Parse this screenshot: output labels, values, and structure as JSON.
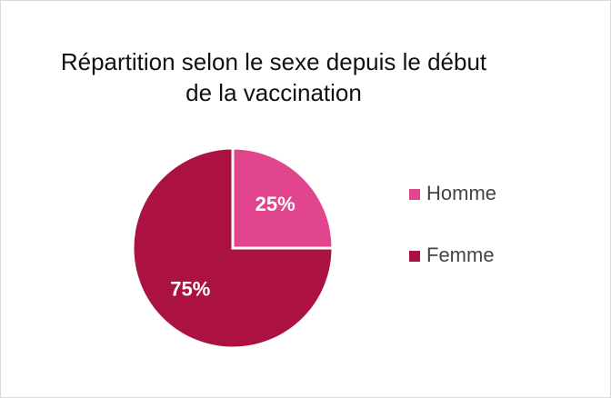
{
  "chart_data": {
    "type": "pie",
    "title": "Répartition selon le sexe depuis le début de la vaccination",
    "categories": [
      "Homme",
      "Femme"
    ],
    "values": [
      25,
      75
    ],
    "value_labels": [
      "25%",
      "75%"
    ],
    "colors": [
      "#e0458e",
      "#ac1241"
    ],
    "legend": "right"
  }
}
